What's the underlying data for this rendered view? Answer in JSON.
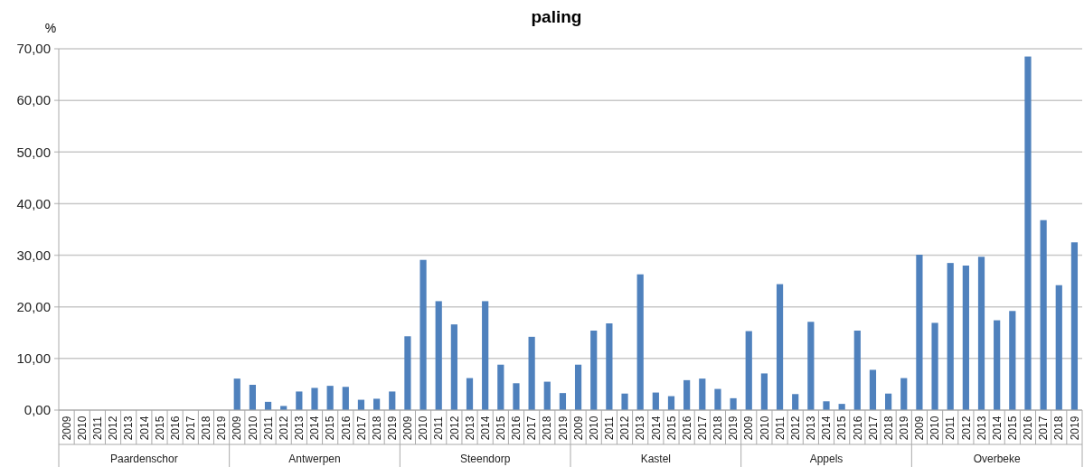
{
  "chart_data": {
    "type": "bar",
    "title": "paling",
    "ylabel": "%",
    "categories": [
      "2009",
      "2010",
      "2011",
      "2012",
      "2013",
      "2014",
      "2015",
      "2016",
      "2017",
      "2018",
      "2019",
      "2009",
      "2010",
      "2011",
      "2012",
      "2013",
      "2014",
      "2015",
      "2016",
      "2017",
      "2018",
      "2019",
      "2009",
      "2010",
      "2011",
      "2012",
      "2013",
      "2014",
      "2015",
      "2016",
      "2017",
      "2018",
      "2019",
      "2009",
      "2010",
      "2011",
      "2012",
      "2013",
      "2014",
      "2015",
      "2016",
      "2017",
      "2018",
      "2019",
      "2009",
      "2010",
      "2011",
      "2012",
      "2013",
      "2014",
      "2015",
      "2016",
      "2017",
      "2018",
      "2019",
      "2009",
      "2010",
      "2011",
      "2012",
      "2013",
      "2014",
      "2015",
      "2016",
      "2017",
      "2018",
      "2019"
    ],
    "values": [
      0,
      0,
      0,
      0,
      0,
      0,
      0,
      0,
      0,
      0,
      0,
      6.1,
      4.9,
      1.6,
      0.8,
      3.6,
      4.3,
      4.7,
      4.5,
      2.0,
      2.2,
      3.6,
      14.3,
      29.1,
      21.1,
      16.6,
      6.2,
      21.1,
      8.8,
      5.2,
      14.2,
      5.5,
      3.3,
      8.8,
      15.4,
      16.8,
      3.2,
      26.3,
      3.4,
      2.7,
      5.8,
      6.1,
      4.1,
      2.3,
      15.3,
      7.1,
      24.4,
      3.1,
      17.1,
      1.7,
      1.2,
      15.4,
      7.8,
      3.2,
      6.2,
      30.1,
      16.9,
      28.5,
      28.0,
      29.7,
      17.4,
      19.2,
      68.5,
      36.8,
      24.2,
      32.5
    ],
    "color": "#4f81bd",
    "ylim": [
      0,
      70
    ],
    "yticks": [
      {
        "value": 0,
        "label": "0,00"
      },
      {
        "value": 10,
        "label": "10,00"
      },
      {
        "value": 20,
        "label": "20,00"
      },
      {
        "value": 30,
        "label": "30,00"
      },
      {
        "value": 40,
        "label": "40,00"
      },
      {
        "value": 50,
        "label": "50,00"
      },
      {
        "value": 60,
        "label": "60,00"
      },
      {
        "value": 70,
        "label": "70,00"
      }
    ],
    "grid": "y",
    "annotations": [
      "Paardenschor",
      "Antwerpen",
      "Steendorp",
      "Kastel",
      "Appels",
      "Overbeke"
    ]
  }
}
